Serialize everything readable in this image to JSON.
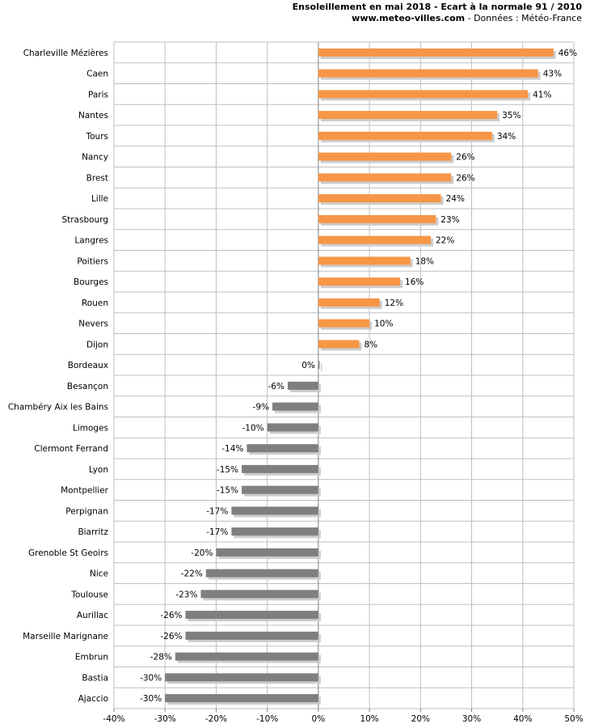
{
  "header": {
    "title": "Ensoleillement en mai 2018 - Ecart à la normale 91 / 2010",
    "site": "www.meteo-villes.com",
    "source": " - Données : Météo-France"
  },
  "chart_data": {
    "type": "bar",
    "orientation": "horizontal",
    "categories": [
      "Charleville Mézières",
      "Caen",
      "Paris",
      "Nantes",
      "Tours",
      "Nancy",
      "Brest",
      "Lille",
      "Strasbourg",
      "Langres",
      "Poitiers",
      "Bourges",
      "Rouen",
      "Nevers",
      "Dijon",
      "Bordeaux",
      "Besançon",
      "Chambéry Aix les Bains",
      "Limoges",
      "Clermont Ferrand",
      "Lyon",
      "Montpellier",
      "Perpignan",
      "Biarritz",
      "Grenoble St Geoirs",
      "Nice",
      "Toulouse",
      "Aurillac",
      "Marseille Marignane",
      "Embrun",
      "Bastia",
      "Ajaccio"
    ],
    "values": [
      46,
      43,
      41,
      35,
      34,
      26,
      26,
      24,
      23,
      22,
      18,
      16,
      12,
      10,
      8,
      0,
      -6,
      -9,
      -10,
      -14,
      -15,
      -15,
      -17,
      -17,
      -20,
      -22,
      -23,
      -26,
      -26,
      -28,
      -30,
      -30
    ],
    "labels": [
      "46%",
      "43%",
      "41%",
      "35%",
      "34%",
      "26%",
      "26%",
      "24%",
      "23%",
      "22%",
      "18%",
      "16%",
      "12%",
      "10%",
      "8%",
      "0%",
      "-6%",
      "-9%",
      "-10%",
      "-14%",
      "-15%",
      "-15%",
      "-17%",
      "-17%",
      "-20%",
      "-22%",
      "-23%",
      "-26%",
      "-26%",
      "-28%",
      "-30%",
      "-30%"
    ],
    "xlim": [
      -40,
      50
    ],
    "xticks": [
      "-40%",
      "-30%",
      "-20%",
      "-10%",
      "0%",
      "10%",
      "20%",
      "30%",
      "40%",
      "50%"
    ],
    "grid": true,
    "colors": {
      "positive": "#f79646",
      "negative": "#7f7f7f",
      "shadow": "#cccccc",
      "grid": "#bfbfbf",
      "axis": "#808080"
    }
  }
}
